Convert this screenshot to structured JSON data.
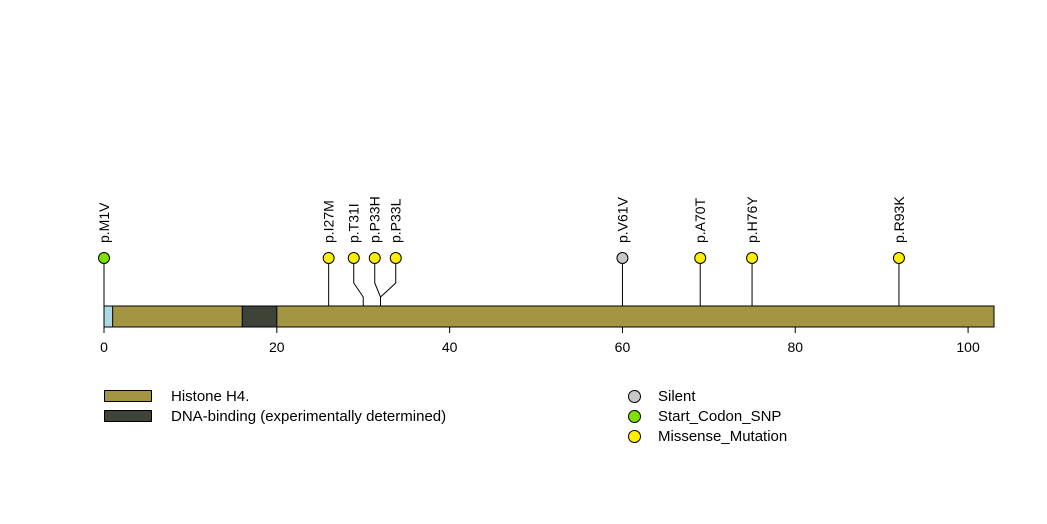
{
  "chart_data": {
    "type": "lollipop",
    "xlim": [
      0,
      103
    ],
    "ticks": [
      0,
      20,
      40,
      60,
      80,
      100
    ],
    "protein_length": 103,
    "domains": [
      {
        "name": "Histone H4.",
        "start": 1,
        "end": 103,
        "color": "#A39542"
      },
      {
        "name": "DNA-binding (experimentally determined)",
        "start": 16,
        "end": 20,
        "color": "#3E4338"
      }
    ],
    "start_segment": {
      "start": 0,
      "end": 1,
      "color": "#ADD8E6"
    },
    "mutations": [
      {
        "label": "p.M1V",
        "position": 0,
        "class": "Start_Codon_SNP",
        "color": "#7FE000"
      },
      {
        "label": "p.I27M",
        "position": 26,
        "class": "Missense_Mutation",
        "color": "#FFEE00"
      },
      {
        "label": "p.T31I",
        "position": 30,
        "class": "Missense_Mutation",
        "color": "#FFEE00"
      },
      {
        "label": "p.P33H",
        "position": 32,
        "class": "Missense_Mutation",
        "color": "#FFEE00"
      },
      {
        "label": "p.P33L",
        "position": 32,
        "class": "Missense_Mutation",
        "color": "#FFEE00"
      },
      {
        "label": "p.V61V",
        "position": 60,
        "class": "Silent",
        "color": "#C8C8C8"
      },
      {
        "label": "p.A70T",
        "position": 69,
        "class": "Missense_Mutation",
        "color": "#FFEE00"
      },
      {
        "label": "p.H76Y",
        "position": 75,
        "class": "Missense_Mutation",
        "color": "#FFEE00"
      },
      {
        "label": "p.R93K",
        "position": 92,
        "class": "Missense_Mutation",
        "color": "#FFEE00"
      }
    ],
    "domain_legend": [
      {
        "label": "Histone H4.",
        "color": "#A39542"
      },
      {
        "label": "DNA-binding (experimentally determined)",
        "color": "#3E4338"
      }
    ],
    "class_legend": [
      {
        "label": "Silent",
        "color": "#C8C8C8"
      },
      {
        "label": "Start_Codon_SNP",
        "color": "#7FE000"
      },
      {
        "label": "Missense_Mutation",
        "color": "#FFEE00"
      }
    ]
  }
}
